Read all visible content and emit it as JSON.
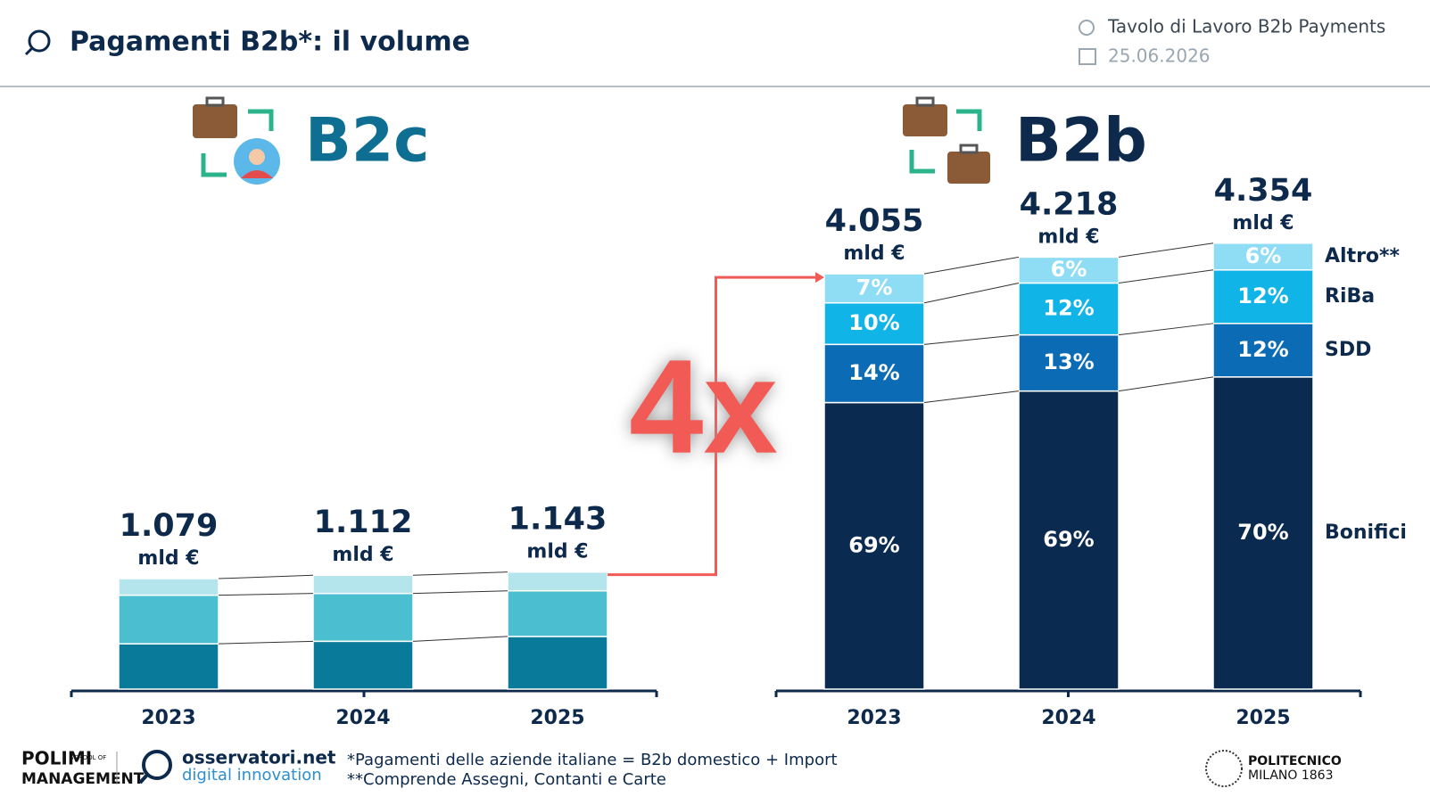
{
  "header": {
    "title": "Pagamenti B2b*: il volume",
    "meeting": "Tavolo di Lavoro B2b Payments",
    "date": "25.06.2026"
  },
  "chart_data": [
    {
      "type": "bar",
      "stacked": true,
      "title": "B2c",
      "categories": [
        "2023",
        "2024",
        "2025"
      ],
      "ylim": [
        0,
        4500
      ],
      "unit": "mld €",
      "totals": {
        "values": [
          1079,
          1112,
          1143
        ],
        "value_labels": [
          "1.079",
          "1.112",
          "1.143"
        ]
      },
      "series": [
        {
          "color": "#0a7a9a",
          "values": [
            41,
            42,
            45
          ]
        },
        {
          "color": "#4bbfcf",
          "values": [
            44,
            42,
            39
          ]
        },
        {
          "color": "#b5e5ec",
          "values": [
            15,
            16,
            16
          ]
        }
      ]
    },
    {
      "type": "bar",
      "stacked": true,
      "title": "B2b",
      "categories": [
        "2023",
        "2024",
        "2025"
      ],
      "ylim": [
        0,
        4500
      ],
      "unit": "mld €",
      "legend": "right",
      "totals": {
        "values": [
          4055,
          4218,
          4354
        ],
        "value_labels": [
          "4.055",
          "4.218",
          "4.354"
        ]
      },
      "series": [
        {
          "name": "Bonifici",
          "color": "#0b2a4f",
          "values": [
            69,
            69,
            70
          ],
          "value_labels": [
            "69%",
            "69%",
            "70%"
          ]
        },
        {
          "name": "SDD",
          "color": "#0b6bb5",
          "values": [
            14,
            13,
            12
          ],
          "value_labels": [
            "14%",
            "13%",
            "12%"
          ]
        },
        {
          "name": "RiBa",
          "color": "#10b4e6",
          "values": [
            10,
            12,
            12
          ],
          "value_labels": [
            "10%",
            "12%",
            "12%"
          ]
        },
        {
          "name": "Altro**",
          "color": "#8fdcf5",
          "values": [
            7,
            6,
            6
          ],
          "value_labels": [
            "7%",
            "6%",
            "6%"
          ]
        }
      ]
    }
  ],
  "annotation": "4x",
  "footnotes": [
    "*Pagamenti delle aziende italiane = B2b domestico + Import",
    "**Comprende Assegni, Contanti e Carte"
  ],
  "logos": {
    "polimi": "POLIMI",
    "polimi_sub": "MANAGEMENT",
    "polimi_school": "SCHOOL OF",
    "osservatori": "osservatori.net",
    "osservatori_sub": "digital innovation",
    "politecnico": "POLITECNICO",
    "politecnico_sub": "MILANO 1863"
  }
}
